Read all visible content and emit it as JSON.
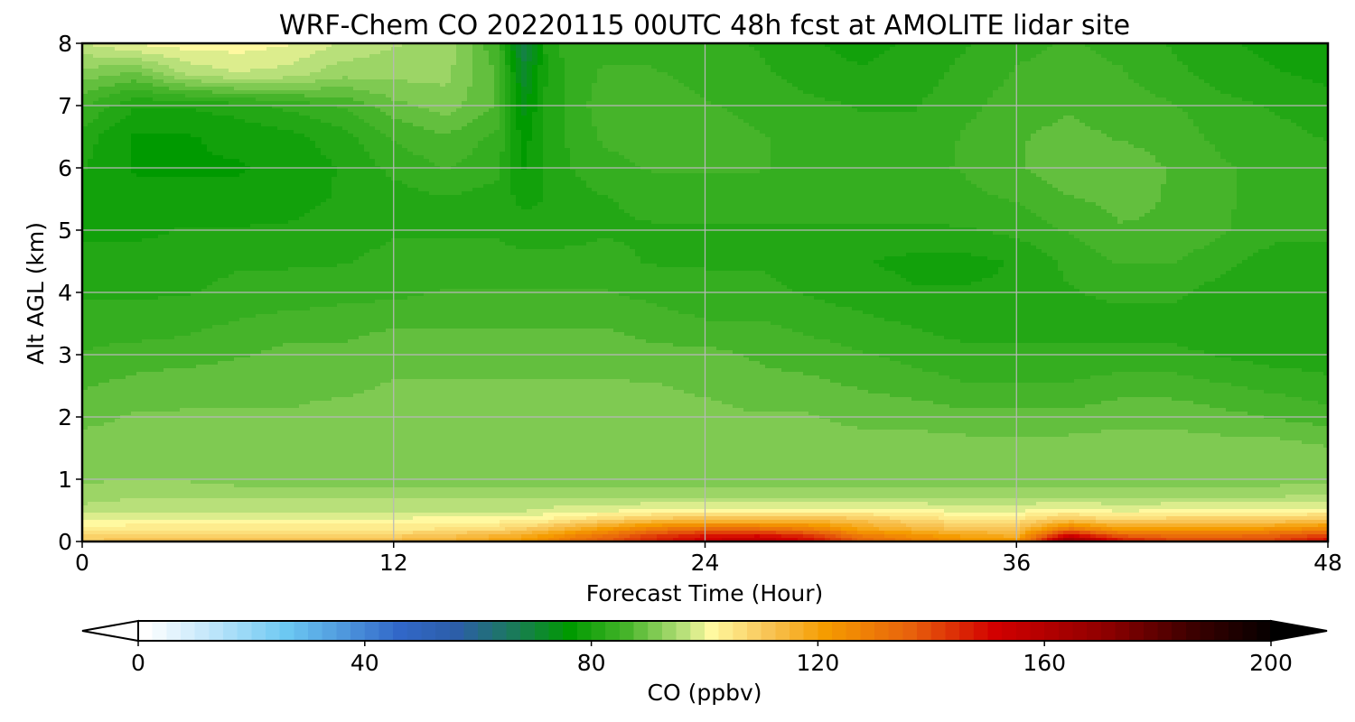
{
  "chart_data": {
    "type": "heatmap",
    "title": "WRF-Chem CO  20220115 00UTC 48h fcst at AMOLITE lidar site",
    "xlabel": "Forecast Time (Hour)",
    "ylabel": "Alt AGL (km)",
    "xlim": [
      0,
      48
    ],
    "ylim": [
      0,
      8
    ],
    "x_ticks": [
      "0",
      "12",
      "24",
      "36",
      "48"
    ],
    "y_ticks": [
      "0",
      "1",
      "2",
      "3",
      "4",
      "5",
      "6",
      "7",
      "8"
    ],
    "grid": true,
    "colorbar": {
      "label": "CO  (ppbv)",
      "range": [
        0,
        200
      ],
      "ticks": [
        "0",
        "40",
        "80",
        "120",
        "160",
        "200"
      ],
      "extend": "both",
      "orientation": "horizontal",
      "stops": [
        {
          "value": 0,
          "color": "#ffffff"
        },
        {
          "value": 10,
          "color": "#c9e9fb"
        },
        {
          "value": 25,
          "color": "#6cc8f2"
        },
        {
          "value": 45,
          "color": "#3167c8"
        },
        {
          "value": 55,
          "color": "#2c5ea8"
        },
        {
          "value": 65,
          "color": "#1a7a5a"
        },
        {
          "value": 75,
          "color": "#009a00"
        },
        {
          "value": 85,
          "color": "#46b42a"
        },
        {
          "value": 95,
          "color": "#b8e07a"
        },
        {
          "value": 100,
          "color": "#fff9a0"
        },
        {
          "value": 110,
          "color": "#f8c455"
        },
        {
          "value": 120,
          "color": "#f59c00"
        },
        {
          "value": 135,
          "color": "#e8620c"
        },
        {
          "value": 150,
          "color": "#d20000"
        },
        {
          "value": 170,
          "color": "#8c0000"
        },
        {
          "value": 185,
          "color": "#3c0000"
        },
        {
          "value": 200,
          "color": "#000000"
        }
      ]
    },
    "grid_x": [
      0,
      2,
      4,
      6,
      8,
      10,
      12,
      14,
      16,
      17,
      18,
      20,
      22,
      24,
      26,
      28,
      30,
      32,
      34,
      36,
      38,
      40,
      42,
      44,
      46,
      48
    ],
    "grid_y": [
      0,
      0.1,
      0.2,
      0.35,
      0.5,
      0.75,
      1,
      1.5,
      2,
      2.5,
      3,
      3.5,
      4,
      4.5,
      5,
      5.5,
      6,
      6.5,
      7,
      7.5,
      8
    ],
    "values": [
      [
        108,
        112,
        112,
        112,
        112,
        112,
        112,
        114,
        118,
        120,
        126,
        136,
        145,
        152,
        155,
        150,
        135,
        128,
        122,
        120,
        170,
        148,
        140,
        138,
        140,
        150
      ],
      [
        106,
        108,
        108,
        108,
        108,
        108,
        108,
        110,
        114,
        116,
        120,
        130,
        140,
        146,
        148,
        142,
        128,
        122,
        118,
        115,
        150,
        135,
        132,
        132,
        135,
        140
      ],
      [
        102,
        103,
        103,
        103,
        103,
        103,
        103,
        104,
        106,
        108,
        112,
        120,
        128,
        132,
        132,
        128,
        118,
        114,
        110,
        110,
        130,
        120,
        120,
        120,
        122,
        126
      ],
      [
        98,
        99,
        99,
        99,
        99,
        99,
        99,
        100,
        100,
        100,
        102,
        106,
        110,
        112,
        112,
        112,
        110,
        106,
        104,
        104,
        110,
        106,
        108,
        108,
        108,
        110
      ],
      [
        95,
        96,
        96,
        96,
        96,
        96,
        96,
        96,
        96,
        96,
        97,
        98,
        99,
        100,
        100,
        100,
        100,
        99,
        98,
        98,
        100,
        98,
        99,
        99,
        99,
        100
      ],
      [
        92,
        93,
        93,
        93,
        93,
        93,
        93,
        93,
        93,
        93,
        93,
        93,
        93,
        93,
        93,
        93,
        93,
        93,
        93,
        93,
        93,
        93,
        93,
        93,
        93,
        94
      ],
      [
        91,
        91,
        91,
        90,
        90,
        90,
        90,
        90,
        90,
        90,
        90,
        90,
        90,
        90,
        90,
        90,
        90,
        90,
        90,
        90,
        90,
        90,
        90,
        90,
        90,
        90
      ],
      [
        90,
        90,
        90,
        90,
        90,
        90,
        90,
        90,
        90,
        90,
        90,
        90,
        90,
        90,
        90,
        90,
        90,
        90,
        90,
        90,
        90,
        90,
        90,
        90,
        90,
        89
      ],
      [
        88,
        89,
        89,
        89,
        89,
        90,
        90,
        90,
        90,
        90,
        90,
        90,
        90,
        90,
        89,
        89,
        88,
        88,
        87,
        87,
        87,
        88,
        88,
        87,
        86,
        85
      ],
      [
        86,
        87,
        88,
        88,
        88,
        88,
        89,
        89,
        89,
        89,
        89,
        89,
        89,
        88,
        87,
        87,
        86,
        85,
        84,
        84,
        84,
        85,
        85,
        84,
        83,
        82
      ],
      [
        84,
        85,
        85,
        86,
        87,
        87,
        88,
        88,
        88,
        88,
        88,
        88,
        87,
        87,
        86,
        85,
        84,
        83,
        82,
        82,
        82,
        82,
        82,
        81,
        80,
        80
      ],
      [
        82,
        82,
        83,
        84,
        85,
        85,
        86,
        86,
        86,
        86,
        86,
        86,
        85,
        84,
        84,
        83,
        82,
        81,
        80,
        80,
        80,
        80,
        80,
        79,
        79,
        79
      ],
      [
        81,
        81,
        81,
        82,
        82,
        83,
        83,
        84,
        84,
        84,
        84,
        84,
        83,
        82,
        82,
        81,
        80,
        79,
        79,
        79,
        81,
        82,
        82,
        80,
        79,
        79
      ],
      [
        80,
        80,
        80,
        81,
        81,
        81,
        82,
        82,
        82,
        82,
        82,
        82,
        81,
        81,
        81,
        80,
        79,
        78,
        78,
        79,
        82,
        84,
        84,
        82,
        80,
        80
      ],
      [
        78,
        78,
        79,
        79,
        79,
        80,
        81,
        81,
        81,
        80,
        80,
        81,
        81,
        81,
        81,
        81,
        81,
        81,
        81,
        82,
        84,
        86,
        86,
        84,
        82,
        82
      ],
      [
        78,
        77,
        77,
        77,
        78,
        79,
        80,
        81,
        80,
        78,
        79,
        81,
        82,
        82,
        82,
        82,
        82,
        82,
        83,
        84,
        86,
        87,
        86,
        84,
        83,
        83
      ],
      [
        79,
        76,
        76,
        76,
        77,
        79,
        82,
        84,
        82,
        76,
        80,
        83,
        84,
        84,
        84,
        83,
        82,
        83,
        84,
        86,
        88,
        88,
        86,
        84,
        83,
        83
      ],
      [
        80,
        76,
        76,
        77,
        78,
        80,
        84,
        86,
        83,
        75,
        80,
        84,
        85,
        85,
        84,
        83,
        82,
        82,
        84,
        86,
        87,
        86,
        85,
        83,
        82,
        81
      ],
      [
        84,
        79,
        79,
        80,
        82,
        84,
        88,
        90,
        86,
        73,
        80,
        85,
        85,
        84,
        83,
        82,
        81,
        81,
        83,
        85,
        86,
        85,
        84,
        82,
        81,
        80
      ],
      [
        90,
        88,
        94,
        96,
        95,
        92,
        92,
        92,
        86,
        70,
        80,
        84,
        84,
        83,
        82,
        80,
        79,
        80,
        82,
        84,
        85,
        84,
        82,
        80,
        79,
        78
      ],
      [
        96,
        99,
        100,
        100,
        99,
        96,
        94,
        93,
        84,
        66,
        81,
        83,
        83,
        82,
        81,
        79,
        78,
        79,
        81,
        83,
        84,
        83,
        81,
        79,
        78,
        77
      ]
    ]
  }
}
